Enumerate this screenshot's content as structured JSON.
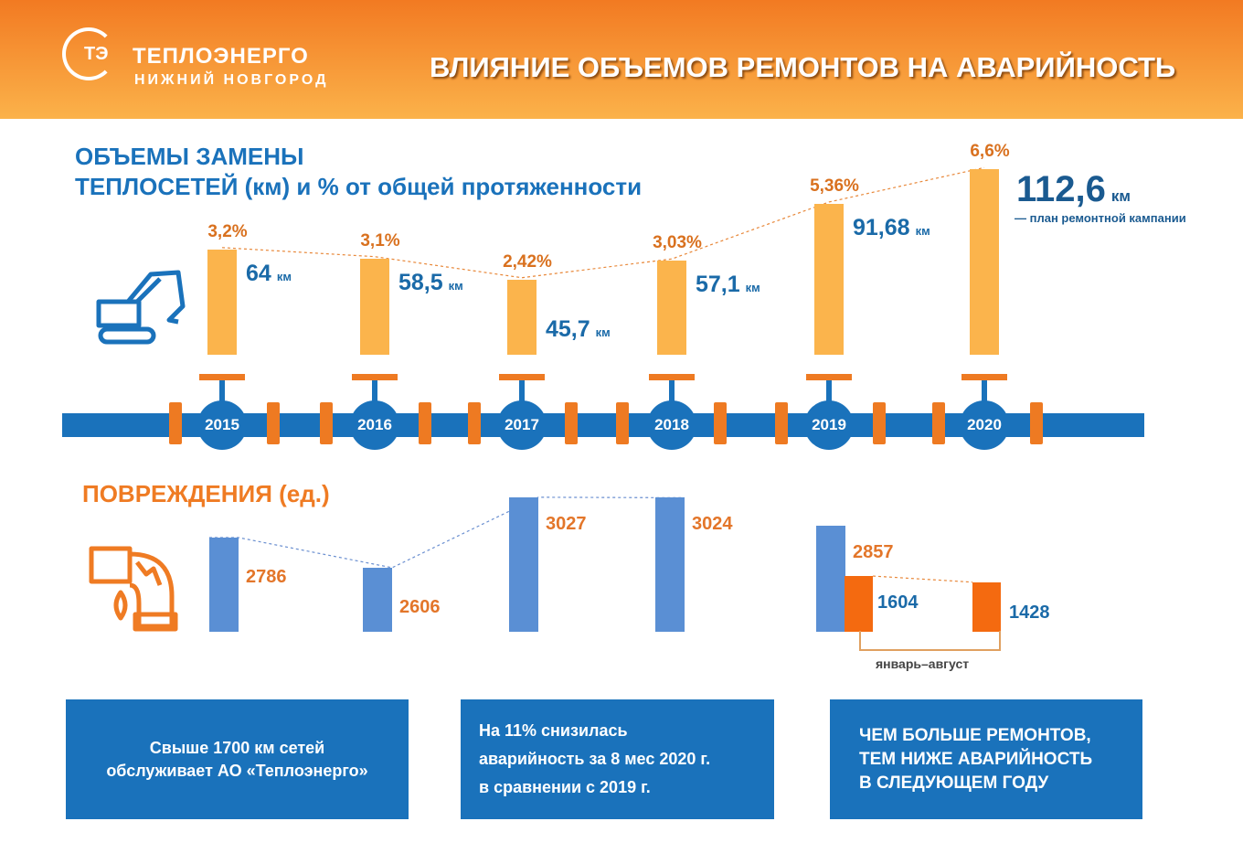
{
  "header": {
    "logo_abbr": "ТЭ",
    "logo_name": "ТЕПЛОЭНЕРГО",
    "logo_city": "НИЖНИЙ НОВГОРОД",
    "title": "ВЛИЯНИЕ ОБЪЕМОВ РЕМОНТОВ НА АВАРИЙНОСТЬ"
  },
  "colors": {
    "header": "#f27a22",
    "blue": "#1a72bb",
    "orange": "#ef7b23",
    "bar_yellow": "#fbb44c",
    "damage_blue": "#5a8fd4",
    "damage_orange": "#f46a10"
  },
  "chart_data": [
    {
      "type": "bar",
      "title_line1": "ОБЪЕМЫ ЗАМЕНЫ",
      "title_line2": "ТЕПЛОСЕТЕЙ (км) и % от общей протяженности",
      "categories": [
        "2015",
        "2016",
        "2017",
        "2018",
        "2019",
        "2020"
      ],
      "values": [
        64,
        58.5,
        45.7,
        57.1,
        91.68,
        112.6
      ],
      "value_labels": [
        "64",
        "58,5",
        "45,7",
        "57,1",
        "91,68",
        "112,6"
      ],
      "unit": "км",
      "percent_labels": [
        "3,2%",
        "3,1%",
        "2,42%",
        "3,03%",
        "5,36%",
        "6,6%"
      ],
      "note_2020": "— план ремонтной кампании"
    },
    {
      "type": "bar",
      "title": "ПОВРЕЖДЕНИЯ (ед.)",
      "categories": [
        "2015",
        "2016",
        "2017",
        "2018",
        "2019"
      ],
      "values": [
        2786,
        2606,
        3027,
        3024,
        2857
      ],
      "partial_series": {
        "name": "январь–август",
        "categories": [
          "2019",
          "2020"
        ],
        "values": [
          1604,
          1428
        ]
      }
    }
  ],
  "icons": {
    "excavator": "excavator-icon",
    "pipe": "broken-pipe-icon"
  },
  "boxes": [
    {
      "lines": [
        "Свыше 1700 км сетей",
        "обслуживает АО «Теплоэнерго»"
      ]
    },
    {
      "lines": [
        "На 11% снизилась",
        "аварийность за 8 мес 2020 г.",
        "в сравнении с 2019 г."
      ]
    },
    {
      "lines": [
        "ЧЕМ БОЛЬШЕ РЕМОНТОВ,",
        "ТЕМ НИЖЕ АВАРИЙНОСТЬ",
        "В СЛЕДУЮЩЕМ ГОДУ"
      ]
    }
  ]
}
